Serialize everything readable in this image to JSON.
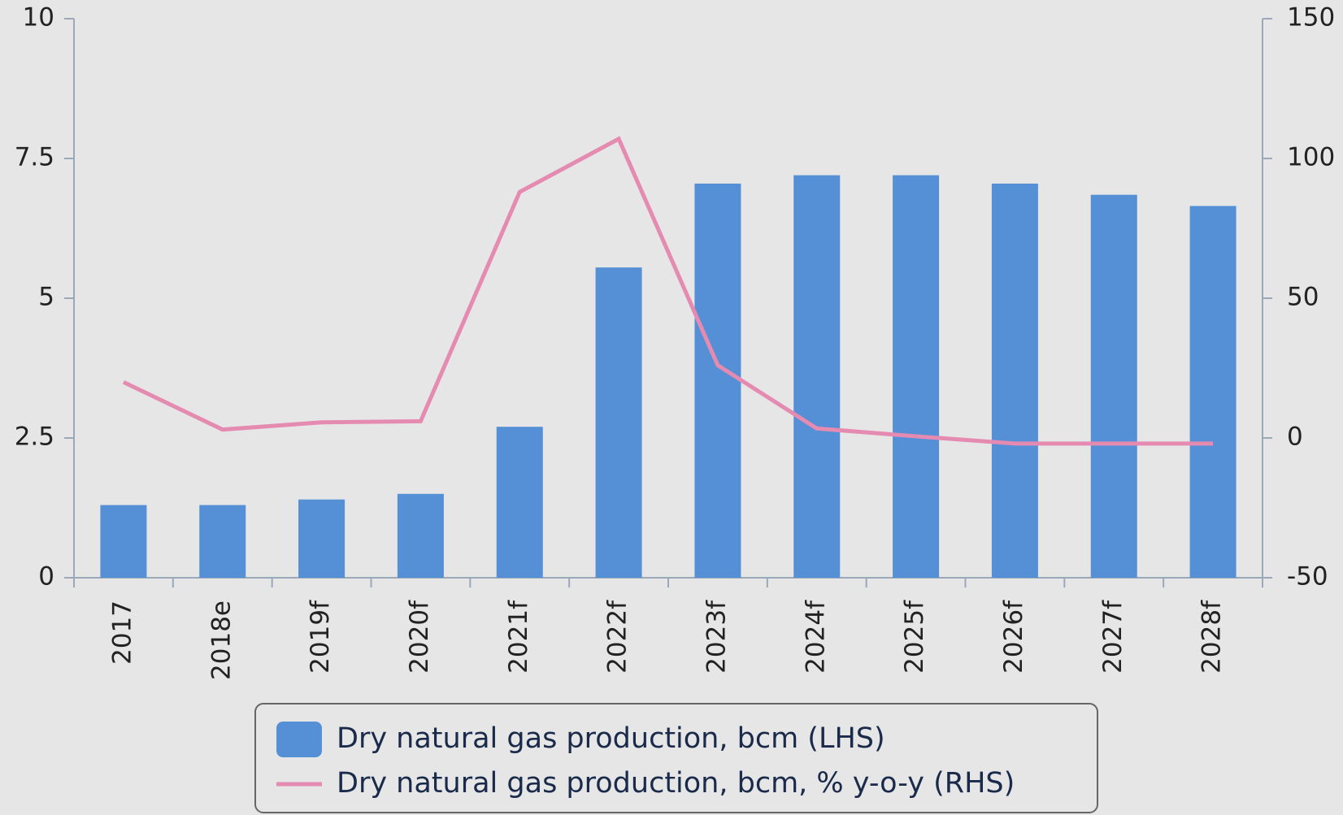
{
  "chart_data": {
    "type": "bar",
    "categories": [
      "2017",
      "2018e",
      "2019f",
      "2020f",
      "2021f",
      "2022f",
      "2023f",
      "2024f",
      "2025f",
      "2026f",
      "2027f",
      "2028f"
    ],
    "series": [
      {
        "name": "Dry natural gas production, bcm (LHS)",
        "color": "#5590d6",
        "type": "bar",
        "values": [
          1.3,
          1.3,
          1.4,
          1.5,
          2.7,
          5.55,
          7.05,
          7.2,
          7.2,
          7.05,
          6.85,
          6.65
        ]
      },
      {
        "name": "Dry natural gas production, bcm, % y-o-y (RHS)",
        "color": "#e58ab0",
        "type": "line",
        "axis": "y2",
        "values": [
          20,
          3,
          5.6,
          6,
          88,
          107,
          26,
          3.4,
          0.6,
          -2,
          -2,
          -2
        ]
      }
    ],
    "ylim": [
      0,
      10
    ],
    "yticks": [
      0,
      2.5,
      5,
      7.5,
      10
    ],
    "y2lim": [
      -50,
      150
    ],
    "y2ticks": [
      -50,
      0,
      50,
      100,
      150
    ]
  }
}
